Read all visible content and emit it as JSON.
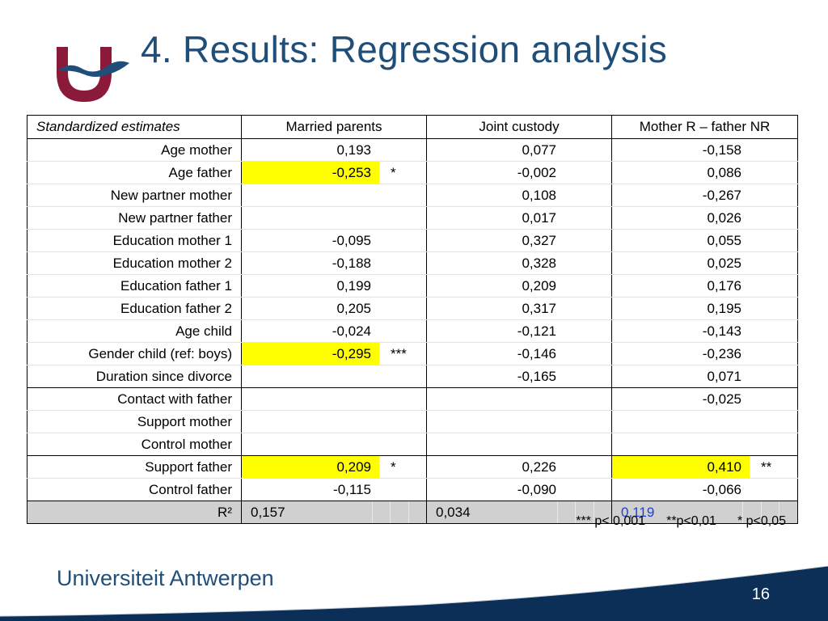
{
  "slide": {
    "title": "4. Results: Regression analysis",
    "page_number": "16",
    "footer_brand": "Universiteit Antwerpen"
  },
  "table": {
    "header": {
      "label": "Standardized estimates",
      "cols": [
        "Married parents",
        "Joint custody",
        "Mother R – father NR"
      ]
    },
    "rows": [
      {
        "label": "Age mother",
        "cells": [
          {
            "v": "0,193",
            "s": "",
            "h": false
          },
          {
            "v": "0,077",
            "s": "",
            "h": false
          },
          {
            "v": "-0,158",
            "s": "",
            "h": false
          }
        ]
      },
      {
        "label": "Age father",
        "cells": [
          {
            "v": "-0,253",
            "s": "*",
            "h": true
          },
          {
            "v": "-0,002",
            "s": "",
            "h": false
          },
          {
            "v": "0,086",
            "s": "",
            "h": false
          }
        ]
      },
      {
        "label": "New partner mother",
        "cells": [
          {
            "v": "",
            "s": "",
            "h": false
          },
          {
            "v": "0,108",
            "s": "",
            "h": false
          },
          {
            "v": "-0,267",
            "s": "",
            "h": false
          }
        ]
      },
      {
        "label": "New partner father",
        "cells": [
          {
            "v": "",
            "s": "",
            "h": false
          },
          {
            "v": "0,017",
            "s": "",
            "h": false
          },
          {
            "v": "0,026",
            "s": "",
            "h": false
          }
        ]
      },
      {
        "label": "Education mother 1",
        "cells": [
          {
            "v": "-0,095",
            "s": "",
            "h": false
          },
          {
            "v": "0,327",
            "s": "",
            "h": false
          },
          {
            "v": "0,055",
            "s": "",
            "h": false
          }
        ]
      },
      {
        "label": "Education mother 2",
        "cells": [
          {
            "v": "-0,188",
            "s": "",
            "h": false
          },
          {
            "v": "0,328",
            "s": "",
            "h": false
          },
          {
            "v": "0,025",
            "s": "",
            "h": false
          }
        ]
      },
      {
        "label": "Education father 1",
        "cells": [
          {
            "v": "0,199",
            "s": "",
            "h": false
          },
          {
            "v": "0,209",
            "s": "",
            "h": false
          },
          {
            "v": "0,176",
            "s": "",
            "h": false
          }
        ]
      },
      {
        "label": "Education father 2",
        "cells": [
          {
            "v": "0,205",
            "s": "",
            "h": false
          },
          {
            "v": "0,317",
            "s": "",
            "h": false
          },
          {
            "v": "0,195",
            "s": "",
            "h": false
          }
        ]
      },
      {
        "label": "Age child",
        "cells": [
          {
            "v": "-0,024",
            "s": "",
            "h": false
          },
          {
            "v": "-0,121",
            "s": "",
            "h": false
          },
          {
            "v": "-0,143",
            "s": "",
            "h": false
          }
        ]
      },
      {
        "label": "Gender child (ref: boys)",
        "cells": [
          {
            "v": "-0,295",
            "s": "***",
            "h": true
          },
          {
            "v": "-0,146",
            "s": "",
            "h": false
          },
          {
            "v": "-0,236",
            "s": "",
            "h": false
          }
        ]
      },
      {
        "label": "Duration since divorce",
        "cells": [
          {
            "v": "",
            "s": "",
            "h": false
          },
          {
            "v": "-0,165",
            "s": "",
            "h": false
          },
          {
            "v": "0,071",
            "s": "",
            "h": false
          }
        ]
      },
      {
        "label": "Contact with father",
        "cells": [
          {
            "v": "",
            "s": "",
            "h": false
          },
          {
            "v": "",
            "s": "",
            "h": false
          },
          {
            "v": "-0,025",
            "s": "",
            "h": false
          }
        ]
      },
      {
        "label": "Support mother",
        "cells": [
          {
            "v": "",
            "s": "",
            "h": false
          },
          {
            "v": "",
            "s": "",
            "h": false
          },
          {
            "v": "",
            "s": "",
            "h": false
          }
        ]
      },
      {
        "label": "Control mother",
        "cells": [
          {
            "v": "",
            "s": "",
            "h": false
          },
          {
            "v": "",
            "s": "",
            "h": false
          },
          {
            "v": "",
            "s": "",
            "h": false
          }
        ]
      },
      {
        "label": "Support father",
        "cells": [
          {
            "v": "0,209",
            "s": "*",
            "h": true
          },
          {
            "v": "0,226",
            "s": "",
            "h": false
          },
          {
            "v": "0,410",
            "s": "**",
            "h": true
          }
        ]
      },
      {
        "label": "Control father",
        "cells": [
          {
            "v": "-0,115",
            "s": "",
            "h": false
          },
          {
            "v": "-0,090",
            "s": "",
            "h": false
          },
          {
            "v": "-0,066",
            "s": "",
            "h": false
          }
        ]
      }
    ],
    "r2": {
      "label": "R²",
      "values": [
        "0,157",
        "0,034",
        "0,119"
      ]
    },
    "footnote": [
      "*** p< 0,001",
      "**p<0,01",
      "* p<0,05"
    ]
  },
  "colors": {
    "title": "#1f4e79",
    "highlight": "#ffff00",
    "r2_row": "#d0d0d0",
    "r2_blue": "#1f3fd8",
    "logo_red": "#8b1a3a",
    "logo_blue": "#1f4e79",
    "footer_wave": "#0b2f57"
  }
}
